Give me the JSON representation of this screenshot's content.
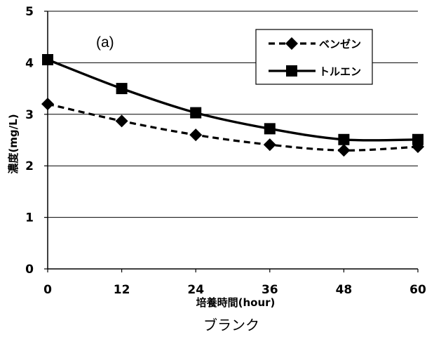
{
  "chart_data": {
    "type": "line",
    "panel_label": "(a)",
    "xlabel": "培養時間(hour)",
    "ylabel": "濃度(mg/L)",
    "caption": "ブランク",
    "x": [
      0,
      12,
      24,
      36,
      48,
      60
    ],
    "x_ticks": [
      "0",
      "12",
      "24",
      "36",
      "48",
      "60"
    ],
    "y_ticks": [
      "0",
      "1",
      "2",
      "3",
      "4",
      "5"
    ],
    "xlim": [
      0,
      60
    ],
    "ylim": [
      0,
      5
    ],
    "grid": "horizontal",
    "legend_position": "top-right",
    "series": [
      {
        "name": "ベンゼン",
        "marker": "diamond",
        "line": "dashed",
        "values": [
          3.2,
          2.87,
          2.6,
          2.41,
          2.3,
          2.37
        ]
      },
      {
        "name": "トルエン",
        "marker": "square",
        "line": "solid",
        "values": [
          4.06,
          3.5,
          3.03,
          2.72,
          2.51,
          2.51
        ]
      }
    ]
  }
}
